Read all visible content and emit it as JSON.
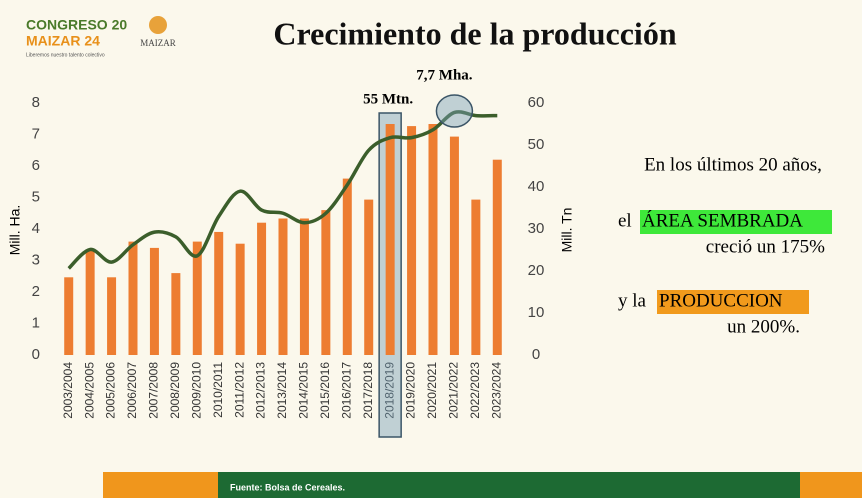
{
  "header": {
    "logo_top": "CONGRESO 20",
    "logo_bottom": "MAIZAR 24",
    "logo_tagline": "Liberemos nuestro talento colectivo",
    "logo2": "MAIZAR"
  },
  "chart_data": {
    "type": "bar_line",
    "title": "Crecimiento de la producción",
    "y_label": "Mill. Ha.",
    "y2_label": "Mill. Tn",
    "categories": [
      "2003/2004",
      "2004/2005",
      "2005/2006",
      "2006/2007",
      "2007/2008",
      "2008/2009",
      "2009/2010",
      "2010/2011",
      "2011/2012",
      "2012/2013",
      "2013/2014",
      "2014/2015",
      "2015/2016",
      "2016/2017",
      "2017/2018",
      "2018/2019",
      "2019/2020",
      "2020/2021",
      "2021/2022",
      "2022/2023",
      "2023/2024"
    ],
    "series": [
      {
        "type": "bar",
        "axis": "y2",
        "color": "#ed7d31",
        "values": [
          18.5,
          25,
          18.5,
          27,
          25.5,
          19.5,
          27,
          29.3,
          26.5,
          31.5,
          32.5,
          32.5,
          34.5,
          42,
          37,
          55,
          54.5,
          55,
          52,
          37,
          46.5
        ]
      },
      {
        "type": "line",
        "axis": "y",
        "color": "#3b5e2b",
        "values": [
          2.75,
          3.35,
          2.95,
          3.5,
          3.9,
          3.75,
          3.15,
          4.4,
          5.2,
          4.6,
          4.5,
          4.2,
          4.5,
          5.4,
          6.5,
          6.9,
          6.9,
          7.15,
          7.7,
          7.6,
          7.6
        ]
      }
    ],
    "ylim": [
      0,
      8
    ],
    "yticks": [
      0,
      1,
      2,
      3,
      4,
      5,
      6,
      7,
      8
    ],
    "y2lim": [
      0,
      60
    ],
    "y2ticks": [
      0,
      10,
      20,
      30,
      40,
      50,
      60
    ],
    "annotations": [
      {
        "text": "55 Mtn.",
        "category": 15
      },
      {
        "text": "7,7 Mha.",
        "category": 18
      }
    ]
  },
  "notes": {
    "line1": "En los últimos 20 años,",
    "line2_pre": "el",
    "line2_highlight": "ÁREA SEMBRADA",
    "line3": "creció un 175%",
    "line4_pre": "y la",
    "line4_highlight": "PRODUCCION",
    "line5": "un 200%."
  },
  "footer": {
    "source": "Fuente: Bolsa de Cereales."
  }
}
